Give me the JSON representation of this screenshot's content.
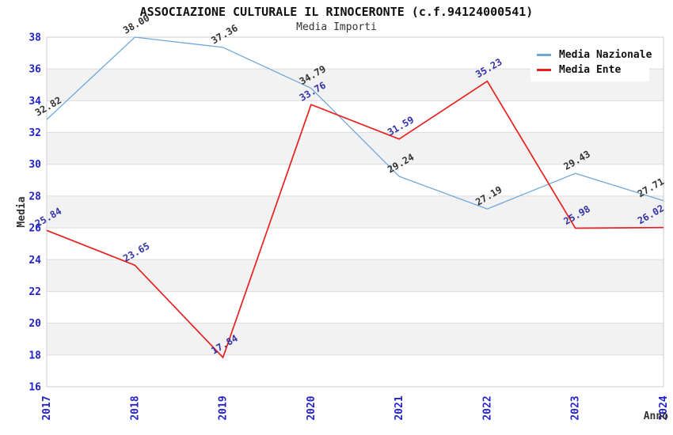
{
  "chart_data": {
    "type": "line",
    "title": "ASSOCIAZIONE CULTURALE IL RINOCERONTE (c.f.94124000541)",
    "subtitle": "Media Importi",
    "categories": [
      "2017",
      "2018",
      "2019",
      "2020",
      "2021",
      "2022",
      "2023",
      "2024"
    ],
    "series": [
      {
        "name": "Media Nazionale",
        "color": "#6FA8DC",
        "label_color": "#333333",
        "values": [
          32.82,
          38.0,
          37.36,
          34.79,
          29.24,
          27.19,
          29.43,
          27.71
        ]
      },
      {
        "name": "Media Ente",
        "color": "#E82020",
        "label_color": "#3333AA",
        "values": [
          25.84,
          23.65,
          17.84,
          33.76,
          31.59,
          35.23,
          25.98,
          26.02
        ]
      }
    ],
    "xlabel": "Anno",
    "ylabel": "Media",
    "ylim": [
      16,
      38
    ],
    "ytick_step": 2,
    "grid": true,
    "legend_position": "top-right",
    "styles": {
      "tick_label_color": "#2222CC",
      "band_color": "#F2F2F2",
      "grid_color": "#DDDDDD",
      "border_color": "#CCCCCC"
    }
  }
}
